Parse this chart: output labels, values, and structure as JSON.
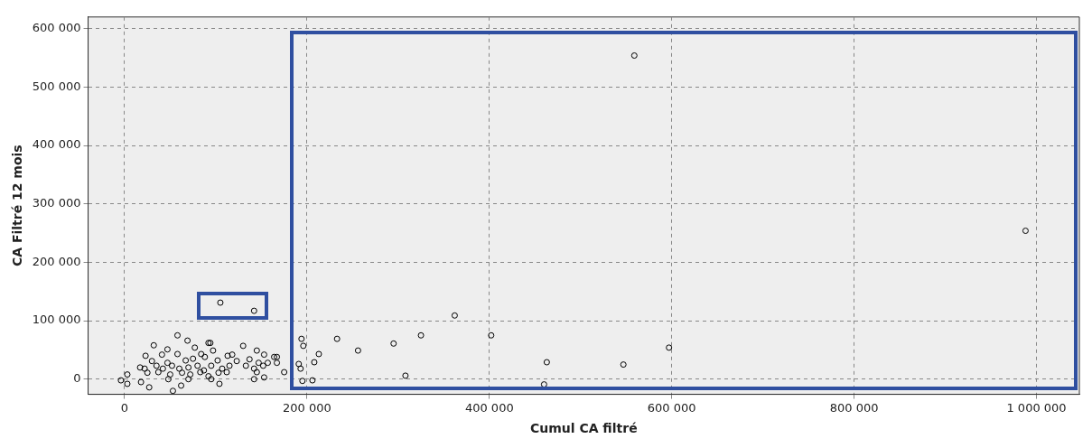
{
  "chart_data": {
    "type": "scatter",
    "xlabel": "Cumul CA filtré",
    "ylabel": "CA Filtré 12 mois",
    "xlim": [
      -40000,
      1047000
    ],
    "ylim": [
      -26000,
      620000
    ],
    "xticks": [
      {
        "value": 0,
        "label": "0"
      },
      {
        "value": 200000,
        "label": "200 000"
      },
      {
        "value": 400000,
        "label": "400 000"
      },
      {
        "value": 600000,
        "label": "600 000"
      },
      {
        "value": 800000,
        "label": "800 000"
      },
      {
        "value": 1000000,
        "label": "1 000 000"
      }
    ],
    "yticks": [
      {
        "value": 0,
        "label": "0"
      },
      {
        "value": 100000,
        "label": "100 000"
      },
      {
        "value": 200000,
        "label": "200 000"
      },
      {
        "value": 300000,
        "label": "300 000"
      },
      {
        "value": 400000,
        "label": "400 000"
      },
      {
        "value": 500000,
        "label": "500 000"
      },
      {
        "value": 600000,
        "label": "600 000"
      }
    ],
    "grid": true,
    "marker": "circle",
    "series": [
      {
        "color": "#000000",
        "x": [
          559000,
          988000,
          362000,
          402000,
          325000,
          295000,
          233000,
          256000,
          597000,
          213000,
          194000,
          196000,
          208000,
          191000,
          193000,
          195000,
          206000,
          308000,
          463000,
          460000,
          547000,
          105000,
          142000,
          58000,
          69000,
          32000,
          47000,
          77000,
          92000,
          94000,
          97000,
          130000,
          145000,
          23000,
          41000,
          58000,
          84000,
          88000,
          113000,
          118000,
          153000,
          164000,
          167000,
          30000,
          47000,
          67000,
          75000,
          102000,
          123000,
          137000,
          147000,
          167000,
          17000,
          22000,
          35000,
          42000,
          52000,
          60000,
          70000,
          80000,
          87000,
          95000,
          107000,
          115000,
          133000,
          142000,
          152000,
          157000,
          25000,
          37000,
          50000,
          63000,
          72000,
          83000,
          92000,
          103000,
          112000,
          145000,
          175000,
          18000,
          27000,
          53000,
          62000,
          104000,
          142000,
          153000,
          -4000,
          3000,
          3000,
          48000,
          70000,
          95000
        ],
        "values": [
          554000,
          254000,
          109000,
          75000,
          75000,
          61000,
          69000,
          49000,
          54000,
          43000,
          69000,
          57000,
          29000,
          26000,
          18000,
          -3000,
          -2000,
          6000,
          29000,
          -9000,
          25000,
          131000,
          117000,
          75000,
          66000,
          58000,
          51000,
          54000,
          62000,
          62000,
          49000,
          57000,
          49000,
          40000,
          42000,
          43000,
          43000,
          38000,
          40000,
          42000,
          42000,
          38000,
          38000,
          31000,
          28000,
          32000,
          35000,
          32000,
          31000,
          34000,
          28000,
          28000,
          20000,
          18000,
          23000,
          18000,
          23000,
          18000,
          20000,
          23000,
          15000,
          23000,
          18000,
          23000,
          23000,
          18000,
          23000,
          28000,
          11000,
          12000,
          8000,
          11000,
          8000,
          12000,
          5000,
          11000,
          12000,
          12000,
          12000,
          -5000,
          -14000,
          -20000,
          -11000,
          -8000,
          0,
          3000,
          -2000,
          8000,
          -8000,
          0,
          0,
          0
        ]
      }
    ]
  }
}
